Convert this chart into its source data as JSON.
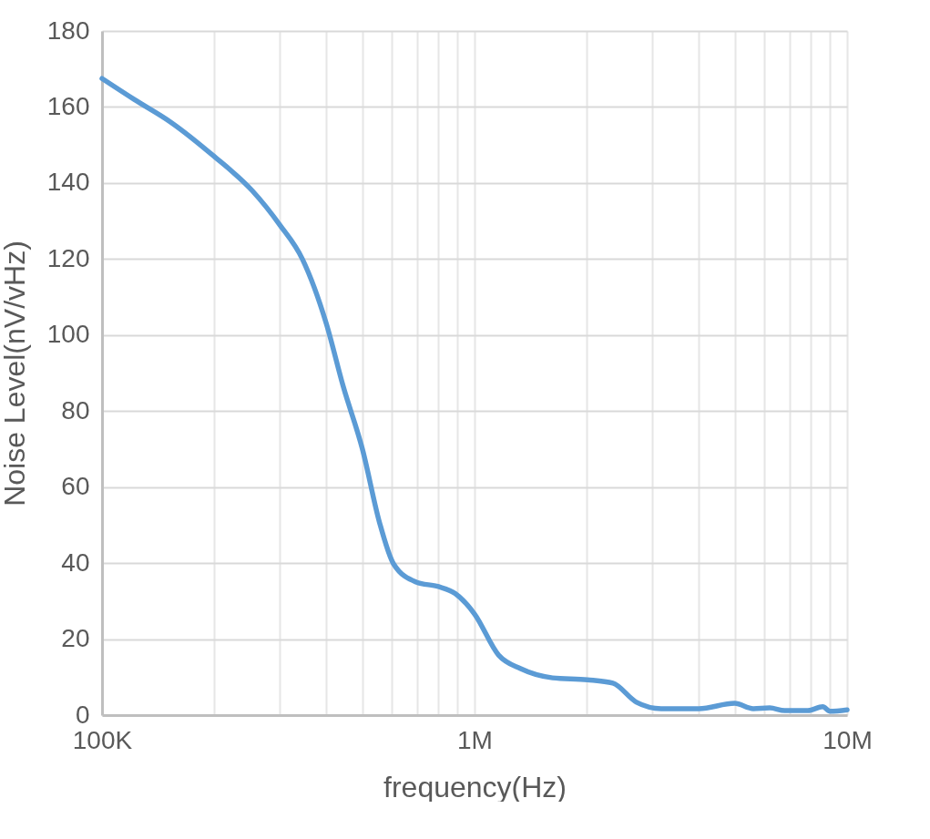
{
  "chart_data": {
    "type": "line",
    "xlabel": "frequency(Hz)",
    "ylabel": "Noise Level(nV/vHz)",
    "log": "x",
    "grid": true,
    "marker": "none",
    "line_style": "solid",
    "xlim": [
      100000,
      10000000
    ],
    "ylim": [
      0,
      180
    ],
    "xticks": [
      {
        "value": 100000,
        "label": "100K"
      },
      {
        "value": 200000,
        "label": null
      },
      {
        "value": 300000,
        "label": null
      },
      {
        "value": 400000,
        "label": null
      },
      {
        "value": 500000,
        "label": null
      },
      {
        "value": 600000,
        "label": null
      },
      {
        "value": 700000,
        "label": null
      },
      {
        "value": 800000,
        "label": null
      },
      {
        "value": 900000,
        "label": null
      },
      {
        "value": 1000000,
        "label": "1M"
      },
      {
        "value": 2000000,
        "label": null
      },
      {
        "value": 3000000,
        "label": null
      },
      {
        "value": 4000000,
        "label": null
      },
      {
        "value": 5000000,
        "label": null
      },
      {
        "value": 6000000,
        "label": null
      },
      {
        "value": 7000000,
        "label": null
      },
      {
        "value": 8000000,
        "label": null
      },
      {
        "value": 9000000,
        "label": null
      },
      {
        "value": 10000000,
        "label": "10M"
      }
    ],
    "yticks": [
      0,
      20,
      40,
      60,
      80,
      100,
      120,
      140,
      160,
      180
    ],
    "series": [
      {
        "color": "#5b9bd5",
        "x": [
          100000,
          122000,
          153000,
          200000,
          253000,
          300000,
          345000,
          400000,
          444000,
          500000,
          556000,
          606000,
          697000,
          800000,
          887000,
          1000000,
          1160000,
          1330000,
          1620000,
          2010000,
          2350000,
          2720000,
          3170000,
          4000000,
          4990000,
          5600000,
          6200000,
          6800000,
          7850000,
          8600000,
          9000000,
          10000000
        ],
        "values": [
          167.5,
          162,
          156,
          147,
          138,
          129,
          120,
          103,
          86.5,
          70,
          50.6,
          39.8,
          35,
          33.8,
          32,
          26.6,
          15.8,
          12.2,
          9.8,
          9.3,
          8.4,
          3.4,
          1.7,
          1.7,
          3.1,
          1.7,
          1.9,
          1.2,
          1.2,
          2.2,
          1,
          1.4
        ]
      }
    ]
  }
}
